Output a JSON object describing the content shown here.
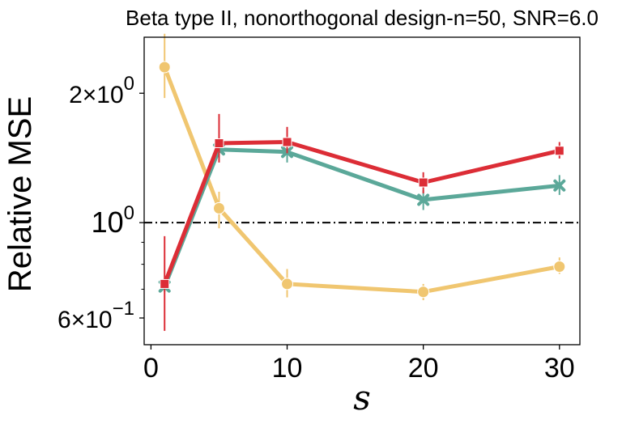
{
  "chart_data": {
    "type": "line",
    "title": "Beta type II, nonorthogonal design-n=50, SNR=6.0",
    "xlabel": "s",
    "ylabel": "Relative MSE",
    "xlim": [
      -0.5,
      31.5
    ],
    "ylim": [
      0.52,
      2.7
    ],
    "yscale": "log",
    "grid": false,
    "x": [
      1,
      5,
      10,
      20,
      30
    ],
    "xticks": [
      {
        "value": 0,
        "label": "0"
      },
      {
        "value": 10,
        "label": "10"
      },
      {
        "value": 20,
        "label": "20"
      },
      {
        "value": 30,
        "label": "30"
      }
    ],
    "yticks_major": [
      {
        "value": 2.0,
        "base": "2×10",
        "exp": "0"
      },
      {
        "value": 1.0,
        "base": "10",
        "exp": "0"
      },
      {
        "value": 0.6,
        "base": "6×10",
        "exp": "−1"
      }
    ],
    "yticks_minor": [
      0.7,
      0.8,
      0.9,
      3.0
    ],
    "reference_line": {
      "y": 1.0,
      "style": "dash-dot",
      "color": "#000000"
    },
    "series": [
      {
        "color": "#F0C670",
        "marker": "circle",
        "values": [
          2.3,
          1.08,
          0.72,
          0.69,
          0.79
        ],
        "err_low": [
          1.95,
          0.97,
          0.67,
          0.66,
          0.76
        ],
        "err_high": [
          2.75,
          1.18,
          0.78,
          0.72,
          0.83
        ]
      },
      {
        "color": "#5BA899",
        "marker": "x",
        "values": [
          0.71,
          1.48,
          1.46,
          1.13,
          1.22
        ],
        "err_low": [
          0.69,
          1.44,
          1.38,
          1.07,
          1.16
        ],
        "err_high": [
          0.74,
          1.52,
          1.54,
          1.19,
          1.29
        ]
      },
      {
        "color": "#DC2D36",
        "marker": "square",
        "values": [
          0.72,
          1.53,
          1.54,
          1.24,
          1.47
        ],
        "err_low": [
          0.56,
          1.38,
          1.45,
          1.17,
          1.41
        ],
        "err_high": [
          0.93,
          1.79,
          1.67,
          1.31,
          1.54
        ]
      }
    ]
  }
}
